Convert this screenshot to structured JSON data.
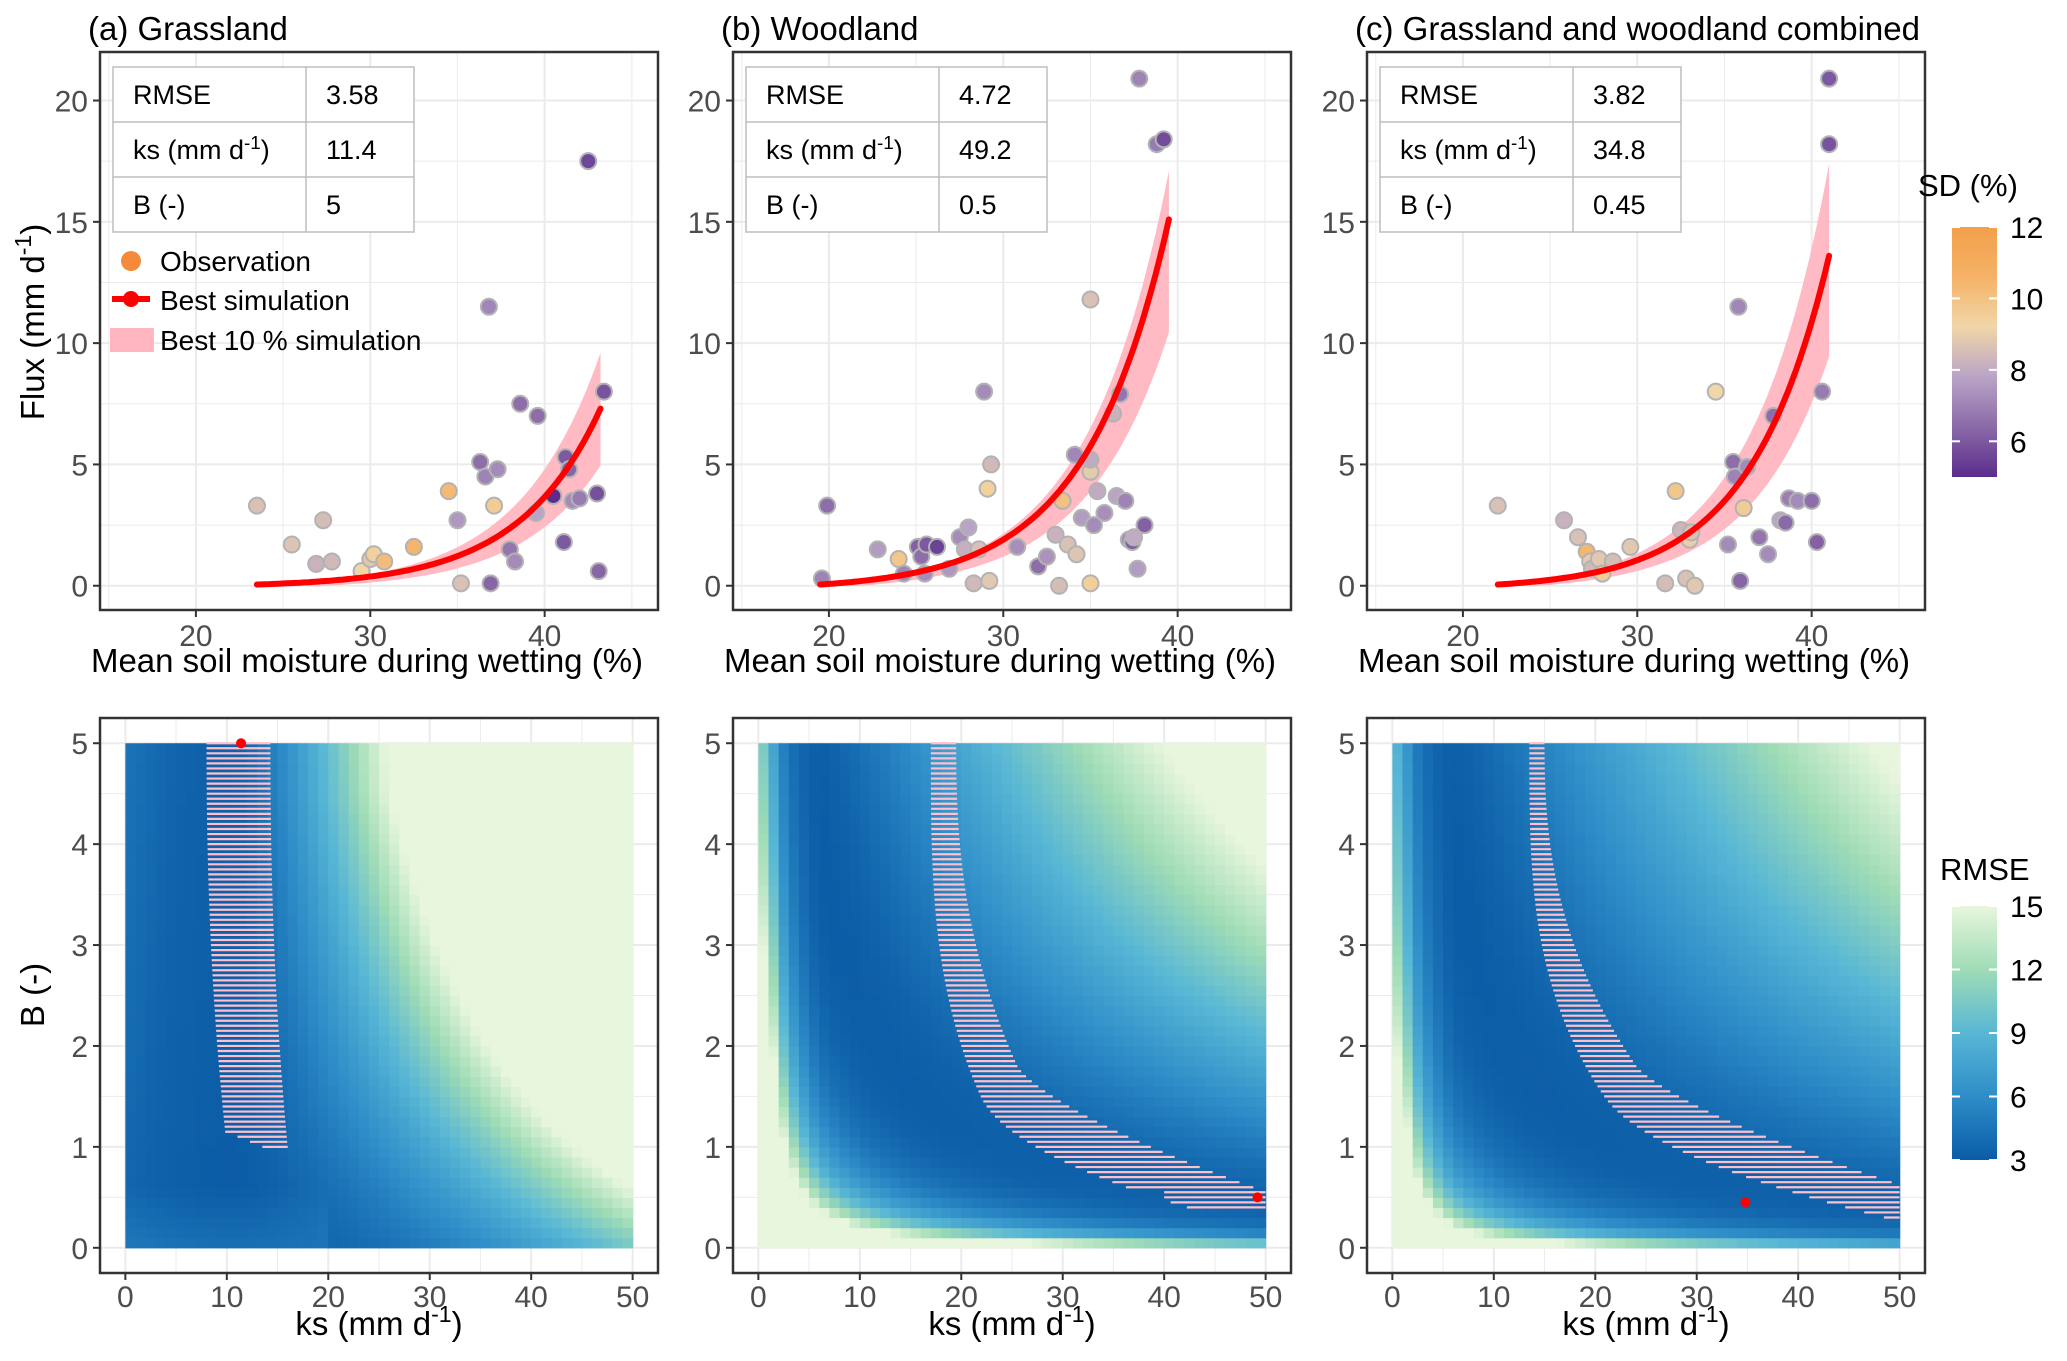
{
  "chart_data": {
    "type": "scatter",
    "colors": {
      "observation": "#f58a3a",
      "best_simulation": "#ff0000",
      "best10_band": "#ffb6c1",
      "band_stripe": "#ffc0cb",
      "grid": "#ebebeb",
      "border": "#333333",
      "sd_scale": [
        "#5a2d8c",
        "#8a6aa8",
        "#b9a4c6",
        "#f1d6a8",
        "#f5b267",
        "#f2a04a"
      ],
      "rmse_scale": [
        "#0b5ca6",
        "#2e8dc8",
        "#58b7d5",
        "#9fdcb6",
        "#e8f6dd"
      ]
    },
    "legend": {
      "observation": "Observation",
      "best_simulation": "Best simulation",
      "best10": "Best 10 % simulation"
    },
    "colorbars": {
      "sd": {
        "title": "SD (%)",
        "ticks": [
          "12",
          "10",
          "8",
          "6"
        ],
        "range": [
          5,
          12
        ]
      },
      "rmse": {
        "title": "RMSE",
        "ticks": [
          "15",
          "12",
          "9",
          "6",
          "3"
        ],
        "range": [
          3,
          15
        ]
      }
    },
    "top_axes": {
      "xlabel": "Mean soil moisture during wetting (%)",
      "ylabel": "Flux (mm d⁻¹)",
      "xticks": [
        "20",
        "30",
        "40"
      ],
      "yticks": [
        "0",
        "5",
        "10",
        "15",
        "20"
      ],
      "xlim": [
        14.5,
        46.5
      ],
      "ylim": [
        -1,
        22
      ]
    },
    "bottom_axes": {
      "xlabel": "ks (mm d⁻¹)",
      "ylabel": "B (-)",
      "xticks": [
        "0",
        "10",
        "20",
        "30",
        "40",
        "50"
      ],
      "yticks": [
        "0",
        "1",
        "2",
        "3",
        "4",
        "5"
      ],
      "xlim": [
        -2.5,
        52.5
      ],
      "ylim": [
        -0.25,
        5.25
      ]
    },
    "panels": [
      {
        "title": "(a) Grassland",
        "table": {
          "rows": [
            [
              "RMSE",
              "3.58"
            ],
            [
              "ks (mm d⁻¹)",
              "11.4"
            ],
            [
              "B (-)",
              "5"
            ]
          ]
        },
        "best_ks": 11.4,
        "best_B": 5,
        "curve": {
          "x0": 23.5,
          "x1": 43.2,
          "y0": 0.05,
          "y1": 7.3
        },
        "band": {
          "x0": 23.5,
          "x1": 43.2,
          "lower_end": 5.1,
          "upper_end": 9.6
        },
        "observations": [
          [
            23.5,
            3.3,
            8.6
          ],
          [
            25.5,
            1.7,
            8.7
          ],
          [
            26.9,
            0.9,
            8.2
          ],
          [
            27.3,
            2.7,
            8.5
          ],
          [
            27.8,
            1.0,
            8.4
          ],
          [
            29.5,
            0.6,
            9.2
          ],
          [
            30.0,
            1.1,
            8.8
          ],
          [
            30.2,
            1.3,
            9.4
          ],
          [
            30.8,
            1.0,
            10.2
          ],
          [
            32.5,
            1.6,
            10.5
          ],
          [
            34.5,
            3.9,
            10.3
          ],
          [
            35.0,
            2.7,
            7.5
          ],
          [
            35.2,
            0.1,
            8.6
          ],
          [
            36.3,
            5.1,
            6.5
          ],
          [
            36.6,
            4.5,
            7.0
          ],
          [
            36.8,
            11.5,
            7.1
          ],
          [
            36.9,
            0.1,
            6.3
          ],
          [
            37.1,
            3.3,
            9.6
          ],
          [
            37.3,
            4.8,
            7.2
          ],
          [
            38.0,
            1.5,
            6.7
          ],
          [
            38.3,
            1.0,
            7.2
          ],
          [
            38.6,
            7.5,
            6.5
          ],
          [
            39.5,
            3.0,
            7.8
          ],
          [
            39.6,
            7.0,
            6.5
          ],
          [
            40.5,
            3.7,
            5.0
          ],
          [
            41.1,
            1.8,
            6.0
          ],
          [
            41.2,
            5.3,
            6.0
          ],
          [
            41.4,
            4.8,
            6.3
          ],
          [
            41.6,
            3.5,
            7.2
          ],
          [
            42.0,
            3.6,
            6.8
          ],
          [
            42.5,
            17.5,
            5.6
          ],
          [
            43.0,
            3.8,
            5.8
          ],
          [
            43.1,
            0.6,
            6.3
          ],
          [
            43.4,
            8.0,
            5.9
          ]
        ],
        "stripes": {
          "mode": "tail",
          "top": [
            8.0,
            14.3
          ],
          "bot": [
            10.0,
            16.0
          ],
          "tail_end": 1.0
        },
        "heat": {
          "min": 3.0,
          "a": 1.5,
          "b": 6.0,
          "cx": 30,
          "c": 0.02,
          "d": 0.00035
        }
      },
      {
        "title": "(b) Woodland",
        "table": {
          "rows": [
            [
              "RMSE",
              "4.72"
            ],
            [
              "ks (mm d⁻¹)",
              "49.2"
            ],
            [
              "B (-)",
              "0.5"
            ]
          ]
        },
        "best_ks": 49.2,
        "best_B": 0.5,
        "curve": {
          "x0": 19.5,
          "x1": 39.5,
          "y0": 0.05,
          "y1": 15.1
        },
        "band": {
          "x0": 19.5,
          "x1": 39.5,
          "lower_end": 10.6,
          "upper_end": 17.1
        },
        "observations": [
          [
            19.6,
            0.3,
            7.0
          ],
          [
            19.9,
            3.3,
            6.5
          ],
          [
            22.8,
            1.5,
            7.6
          ],
          [
            24.0,
            1.1,
            9.8
          ],
          [
            24.3,
            0.5,
            7.0
          ],
          [
            25.1,
            1.6,
            6.2
          ],
          [
            25.3,
            1.2,
            6.5
          ],
          [
            25.5,
            0.5,
            7.2
          ],
          [
            25.6,
            1.7,
            6.0
          ],
          [
            26.2,
            1.6,
            5.5
          ],
          [
            26.9,
            0.7,
            7.5
          ],
          [
            27.5,
            2.0,
            7.2
          ],
          [
            27.8,
            1.5,
            8.1
          ],
          [
            28.0,
            2.4,
            7.8
          ],
          [
            28.3,
            0.1,
            8.4
          ],
          [
            28.6,
            1.5,
            8.6
          ],
          [
            28.9,
            8.0,
            7.2
          ],
          [
            29.1,
            4.0,
            9.4
          ],
          [
            29.2,
            0.2,
            8.8
          ],
          [
            29.3,
            5.0,
            8.4
          ],
          [
            30.8,
            1.6,
            7.3
          ],
          [
            32.0,
            0.8,
            6.5
          ],
          [
            32.5,
            1.2,
            7.4
          ],
          [
            33.0,
            2.1,
            8.2
          ],
          [
            33.2,
            0.0,
            8.5
          ],
          [
            33.4,
            3.5,
            10.0
          ],
          [
            33.7,
            1.7,
            8.6
          ],
          [
            34.1,
            5.4,
            7.1
          ],
          [
            34.2,
            1.3,
            8.7
          ],
          [
            34.5,
            2.8,
            7.6
          ],
          [
            35.0,
            11.8,
            8.6
          ],
          [
            35.0,
            4.7,
            8.9
          ],
          [
            35.0,
            5.2,
            8.0
          ],
          [
            35.0,
            0.1,
            9.5
          ],
          [
            35.2,
            2.5,
            7.2
          ],
          [
            35.4,
            3.9,
            8.0
          ],
          [
            35.8,
            3.0,
            7.3
          ],
          [
            36.3,
            7.1,
            8.2
          ],
          [
            36.5,
            3.7,
            7.8
          ],
          [
            36.7,
            7.9,
            6.7
          ],
          [
            37.0,
            3.5,
            7.0
          ],
          [
            37.2,
            1.9,
            7.2
          ],
          [
            37.4,
            1.8,
            6.2
          ],
          [
            37.5,
            2.0,
            8.0
          ],
          [
            37.7,
            0.7,
            7.6
          ],
          [
            37.8,
            20.9,
            7.0
          ],
          [
            38.1,
            2.5,
            6.2
          ],
          [
            38.8,
            18.2,
            6.8
          ],
          [
            39.2,
            18.4,
            5.7
          ]
        ],
        "stripes": {
          "mode": "curve",
          "top": [
            17.0,
            19.5
          ],
          "knee_b": 0.9,
          "knee_k": 28,
          "end_b": [
            0.4,
            0.6
          ]
        },
        "heat": {
          "min": 3.0,
          "a": 2.5,
          "b": 4.5,
          "cx": 18,
          "c": 0.025,
          "d": 0.00015
        }
      },
      {
        "title": "(c) Grassland and woodland combined",
        "table": {
          "rows": [
            [
              "RMSE",
              "3.82"
            ],
            [
              "ks (mm d⁻¹)",
              "34.8"
            ],
            [
              "B (-)",
              "0.45"
            ]
          ]
        },
        "best_ks": 34.8,
        "best_B": 0.45,
        "curve": {
          "x0": 22.0,
          "x1": 41.0,
          "y0": 0.05,
          "y1": 13.6
        },
        "band": {
          "x0": 22.0,
          "x1": 41.0,
          "lower_end": 9.6,
          "upper_end": 17.4
        },
        "observations": [
          [
            22.0,
            3.3,
            8.6
          ],
          [
            25.8,
            2.7,
            8.2
          ],
          [
            26.6,
            2.0,
            8.6
          ],
          [
            27.1,
            1.4,
            10.4
          ],
          [
            27.3,
            1.0,
            8.9
          ],
          [
            27.4,
            0.7,
            8.4
          ],
          [
            27.8,
            1.1,
            8.8
          ],
          [
            28.0,
            0.5,
            9.6
          ],
          [
            28.6,
            1.0,
            8.5
          ],
          [
            29.6,
            1.6,
            8.8
          ],
          [
            31.6,
            0.1,
            8.5
          ],
          [
            32.2,
            3.9,
            9.8
          ],
          [
            32.5,
            2.3,
            8.3
          ],
          [
            32.8,
            0.3,
            8.6
          ],
          [
            33.0,
            1.9,
            9.0
          ],
          [
            33.1,
            2.2,
            8.6
          ],
          [
            33.3,
            0.0,
            8.8
          ],
          [
            34.5,
            8.0,
            9.2
          ],
          [
            35.2,
            1.7,
            7.2
          ],
          [
            35.5,
            5.1,
            6.5
          ],
          [
            35.6,
            4.5,
            7.0
          ],
          [
            35.8,
            11.5,
            7.1
          ],
          [
            35.9,
            0.2,
            6.3
          ],
          [
            36.1,
            3.2,
            9.6
          ],
          [
            36.3,
            4.9,
            7.2
          ],
          [
            37.0,
            2.0,
            6.7
          ],
          [
            37.5,
            1.3,
            7.2
          ],
          [
            37.8,
            7.0,
            6.5
          ],
          [
            38.2,
            2.7,
            7.8
          ],
          [
            38.5,
            2.6,
            6.4
          ],
          [
            38.7,
            3.6,
            6.9
          ],
          [
            39.2,
            3.5,
            7.2
          ],
          [
            40.0,
            3.5,
            6.5
          ],
          [
            40.3,
            1.8,
            6.2
          ],
          [
            40.6,
            8.0,
            6.8
          ],
          [
            41.0,
            20.9,
            6.0
          ],
          [
            41.0,
            18.2,
            5.9
          ]
        ],
        "stripes": {
          "mode": "curve",
          "top": [
            13.5,
            15.0
          ],
          "knee_b": 0.8,
          "knee_k": 30,
          "end_b": [
            0.25,
            0.45
          ]
        },
        "heat": {
          "min": 3.0,
          "a": 1.8,
          "b": 5.0,
          "cx": 16,
          "c": 0.02,
          "d": 0.00015
        }
      }
    ]
  }
}
